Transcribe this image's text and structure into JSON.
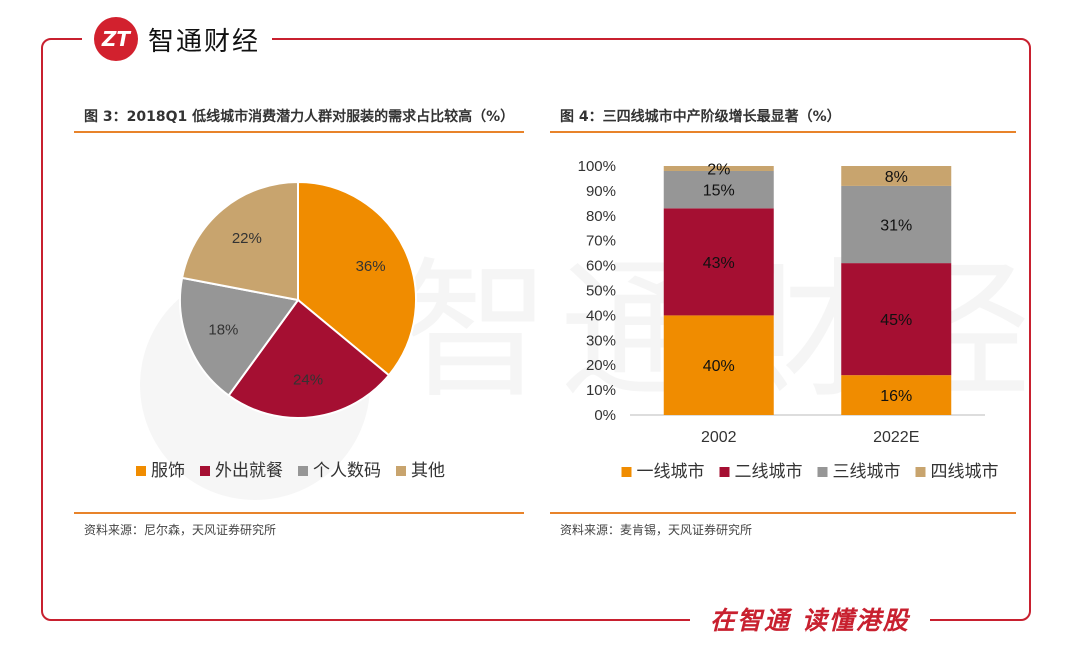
{
  "brand": {
    "logo_mark": "ZT",
    "name": "智通财经"
  },
  "footer": {
    "slogan": "在智通 读懂港股"
  },
  "watermark": "智通财经",
  "colors": {
    "orange": "#f08c00",
    "red": "#a50f32",
    "gray": "#969696",
    "tan": "#c8a46e",
    "rule": "#e8832a",
    "brand": "#c8202f"
  },
  "chart_data": [
    {
      "type": "pie",
      "title": "图 3：2018Q1 低线城市消费潜力人群对服装的需求占比较高（%）",
      "source": "资料来源：尼尔森，天风证券研究所",
      "slices": [
        {
          "label": "服饰",
          "value": 36,
          "display": "36%"
        },
        {
          "label": "外出就餐",
          "value": 24,
          "display": "24%"
        },
        {
          "label": "个人数码",
          "value": 18,
          "display": "18%"
        },
        {
          "label": "其他",
          "value": 22,
          "display": "22%"
        }
      ],
      "legend_position": "bottom"
    },
    {
      "type": "bar",
      "stacked": true,
      "title": "图 4：三四线城市中产阶级增长最显著（%）",
      "source": "资料来源：麦肯锡，天风证券研究所",
      "categories": [
        "2002",
        "2022E"
      ],
      "series": [
        {
          "name": "一线城市",
          "values": [
            40,
            16
          ],
          "labels": [
            "40%",
            "16%"
          ]
        },
        {
          "name": "二线城市",
          "values": [
            43,
            45
          ],
          "labels": [
            "43%",
            "45%"
          ]
        },
        {
          "name": "三线城市",
          "values": [
            15,
            31
          ],
          "labels": [
            "15%",
            "31%"
          ]
        },
        {
          "name": "四线城市",
          "values": [
            2,
            8
          ],
          "labels": [
            "2%",
            "8%"
          ]
        }
      ],
      "yticks": [
        "0%",
        "10%",
        "20%",
        "30%",
        "40%",
        "50%",
        "60%",
        "70%",
        "80%",
        "90%",
        "100%"
      ],
      "ylim": [
        0,
        100
      ],
      "legend_position": "bottom"
    }
  ]
}
